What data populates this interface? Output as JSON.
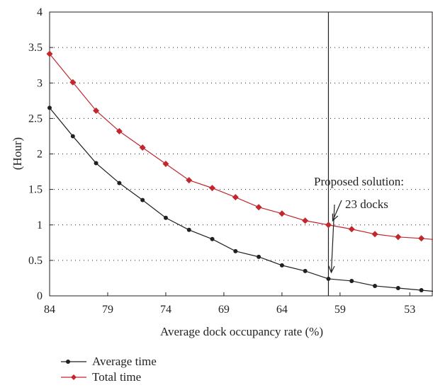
{
  "chart_data": {
    "type": "line",
    "title": "",
    "xlabel": "Average dock occupancy rate (%)",
    "ylabel": "(Hour)",
    "x_ticks": [
      "84",
      "79",
      "74",
      "69",
      "64",
      "59",
      "53"
    ],
    "x_tick_positions": [
      84,
      79,
      74,
      69,
      64,
      59,
      53
    ],
    "xlim": [
      84,
      51
    ],
    "ylim": [
      0,
      4
    ],
    "y_ticks": [
      "0",
      "0.5",
      "1",
      "1.5",
      "2",
      "2.5",
      "3",
      "3.5",
      "4"
    ],
    "y_tick_values": [
      0,
      0.5,
      1,
      1.5,
      2,
      2.5,
      3,
      3.5,
      4
    ],
    "grid": "horizontal dotted",
    "series": [
      {
        "name": "Average time",
        "color": "#231f20",
        "marker": "circle",
        "x": [
          84,
          82,
          80,
          78,
          76,
          74,
          72,
          70,
          68,
          66,
          64,
          62,
          60,
          58,
          56,
          54,
          52,
          50
        ],
        "values": [
          2.65,
          2.25,
          1.87,
          1.59,
          1.35,
          1.1,
          0.93,
          0.8,
          0.63,
          0.55,
          0.43,
          0.35,
          0.24,
          0.21,
          0.14,
          0.11,
          0.08,
          0.05
        ]
      },
      {
        "name": "Total time",
        "color": "#c1272d",
        "marker": "diamond",
        "x": [
          84,
          82,
          80,
          78,
          76,
          74,
          72,
          70,
          68,
          66,
          64,
          62,
          60,
          58,
          56,
          54,
          52,
          50
        ],
        "values": [
          3.41,
          3.01,
          2.61,
          2.32,
          2.09,
          1.86,
          1.63,
          1.52,
          1.39,
          1.25,
          1.16,
          1.06,
          1.0,
          0.94,
          0.87,
          0.83,
          0.81,
          0.78
        ]
      }
    ],
    "annotation": {
      "line1": "Proposed solution:",
      "line2": "23 docks"
    }
  }
}
